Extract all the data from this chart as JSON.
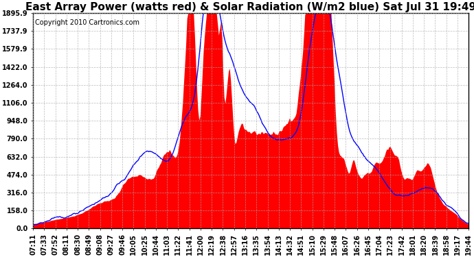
{
  "title": "East Array Power (watts red) & Solar Radiation (W/m2 blue) Sat Jul 31 19:49",
  "copyright_text": "Copyright 2010 Cartronics.com",
  "yticks": [
    0.0,
    158.0,
    316.0,
    474.0,
    632.0,
    790.0,
    948.0,
    1106.0,
    1264.0,
    1422.0,
    1579.9,
    1737.9,
    1895.9
  ],
  "ymax": 1895.9,
  "ymin": 0.0,
  "bg_color": "#ffffff",
  "plot_bg_color": "#ffffff",
  "grid_color": "#aaaaaa",
  "fill_color": "red",
  "line_color": "blue",
  "title_fontsize": 11,
  "copyright_fontsize": 7,
  "tick_fontsize": 7,
  "x_labels": [
    "07:11",
    "07:33",
    "07:52",
    "08:11",
    "08:30",
    "08:49",
    "09:08",
    "09:27",
    "09:46",
    "10:05",
    "10:25",
    "10:44",
    "11:03",
    "11:22",
    "11:41",
    "12:00",
    "12:19",
    "12:38",
    "12:57",
    "13:16",
    "13:35",
    "13:54",
    "14:13",
    "14:32",
    "14:51",
    "15:10",
    "15:29",
    "15:48",
    "16:07",
    "16:26",
    "16:45",
    "17:04",
    "17:23",
    "17:42",
    "18:01",
    "18:20",
    "18:39",
    "18:58",
    "19:17",
    "19:44"
  ],
  "n_points": 400
}
